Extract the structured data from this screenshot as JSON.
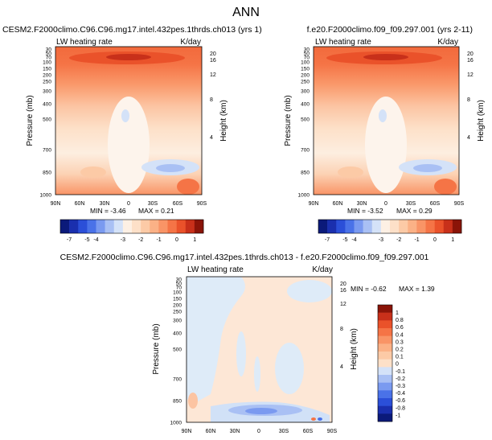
{
  "page": {
    "title": "ANN"
  },
  "chart_data": [
    {
      "type": "heatmap",
      "title": "CESM2.F2000climo.C96.C96.mg17.intel.432pes.1thrds.ch013 (yrs 1)",
      "field_label": "LW heating rate",
      "units": "K/day",
      "ylabel": "Pressure (mb)",
      "ylabel_right": "Height (km)",
      "x_ticks": [
        "90N",
        "60N",
        "30N",
        "0",
        "30S",
        "60S",
        "90S"
      ],
      "y_ticks": [
        "30",
        "50",
        "70",
        "100",
        "150",
        "200",
        "250",
        "300",
        "400",
        "500",
        "700",
        "850",
        "1000"
      ],
      "height_ticks": [
        "20",
        "16",
        "12",
        "8",
        "4"
      ],
      "ylim": [
        1000,
        30
      ],
      "min": -3.46,
      "max": 0.21,
      "min_label": "MIN = -3.46",
      "max_label": "MAX =  0.21"
    },
    {
      "type": "heatmap",
      "title": "f.e20.F2000climo.f09_f09.297.001 (yrs 2-11)",
      "field_label": "LW heating rate",
      "units": "K/day",
      "ylabel": "Pressure (mb)",
      "ylabel_right": "Height (km)",
      "x_ticks": [
        "90N",
        "60N",
        "30N",
        "0",
        "30S",
        "60S",
        "90S"
      ],
      "y_ticks": [
        "30",
        "50",
        "70",
        "100",
        "150",
        "200",
        "250",
        "300",
        "400",
        "500",
        "700",
        "850",
        "1000"
      ],
      "height_ticks": [
        "20",
        "16",
        "12",
        "8",
        "4"
      ],
      "ylim": [
        1000,
        30
      ],
      "min": -3.52,
      "max": 0.29,
      "min_label": "MIN = -3.52",
      "max_label": "MAX =  0.29"
    },
    {
      "type": "heatmap",
      "title": "CESM2.F2000climo.C96.C96.mg17.intel.432pes.1thrds.ch013 - f.e20.F2000climo.f09_f09.297.001",
      "field_label": "LW heating rate",
      "units": "K/day",
      "ylabel": "Pressure (mb)",
      "ylabel_right": "Height (km)",
      "x_ticks": [
        "90N",
        "60N",
        "30N",
        "0",
        "30S",
        "60S",
        "90S"
      ],
      "y_ticks": [
        "30",
        "50",
        "70",
        "100",
        "150",
        "200",
        "250",
        "300",
        "400",
        "500",
        "700",
        "850",
        "1000"
      ],
      "height_ticks": [
        "20",
        "16",
        "12",
        "8",
        "4"
      ],
      "ylim": [
        1000,
        30
      ],
      "min": -0.62,
      "max": 1.39,
      "min_label": "MIN = -0.62",
      "max_label": "MAX =  1.39"
    }
  ],
  "colorbar_top": {
    "labels": [
      "-7",
      "-5",
      "-4",
      "-3",
      "-2",
      "-1",
      "0",
      "1"
    ],
    "colors": [
      "#0b1a7a",
      "#1a2fae",
      "#2b4fd8",
      "#4a72e8",
      "#7a9af0",
      "#a9c0f4",
      "#d4e2f8",
      "#fdf0e4",
      "#fde0c8",
      "#fccaa6",
      "#fbb186",
      "#f99466",
      "#f57446",
      "#ea522a",
      "#c8301a",
      "#8a1408"
    ]
  },
  "colorbar_diff": {
    "labels": [
      "1",
      "0.8",
      "0.6",
      "0.4",
      "0.3",
      "0.2",
      "0.1",
      "0",
      "-0.1",
      "-0.2",
      "-0.3",
      "-0.4",
      "-0.6",
      "-0.8",
      "-1"
    ],
    "colors": [
      "#8a1408",
      "#c8301a",
      "#ea522a",
      "#f57446",
      "#f99466",
      "#fbb186",
      "#fccaa6",
      "#fde0c8",
      "#d4e2f8",
      "#a9c0f4",
      "#7a9af0",
      "#4a72e8",
      "#2b4fd8",
      "#1a2fae",
      "#0b1a7a"
    ]
  }
}
